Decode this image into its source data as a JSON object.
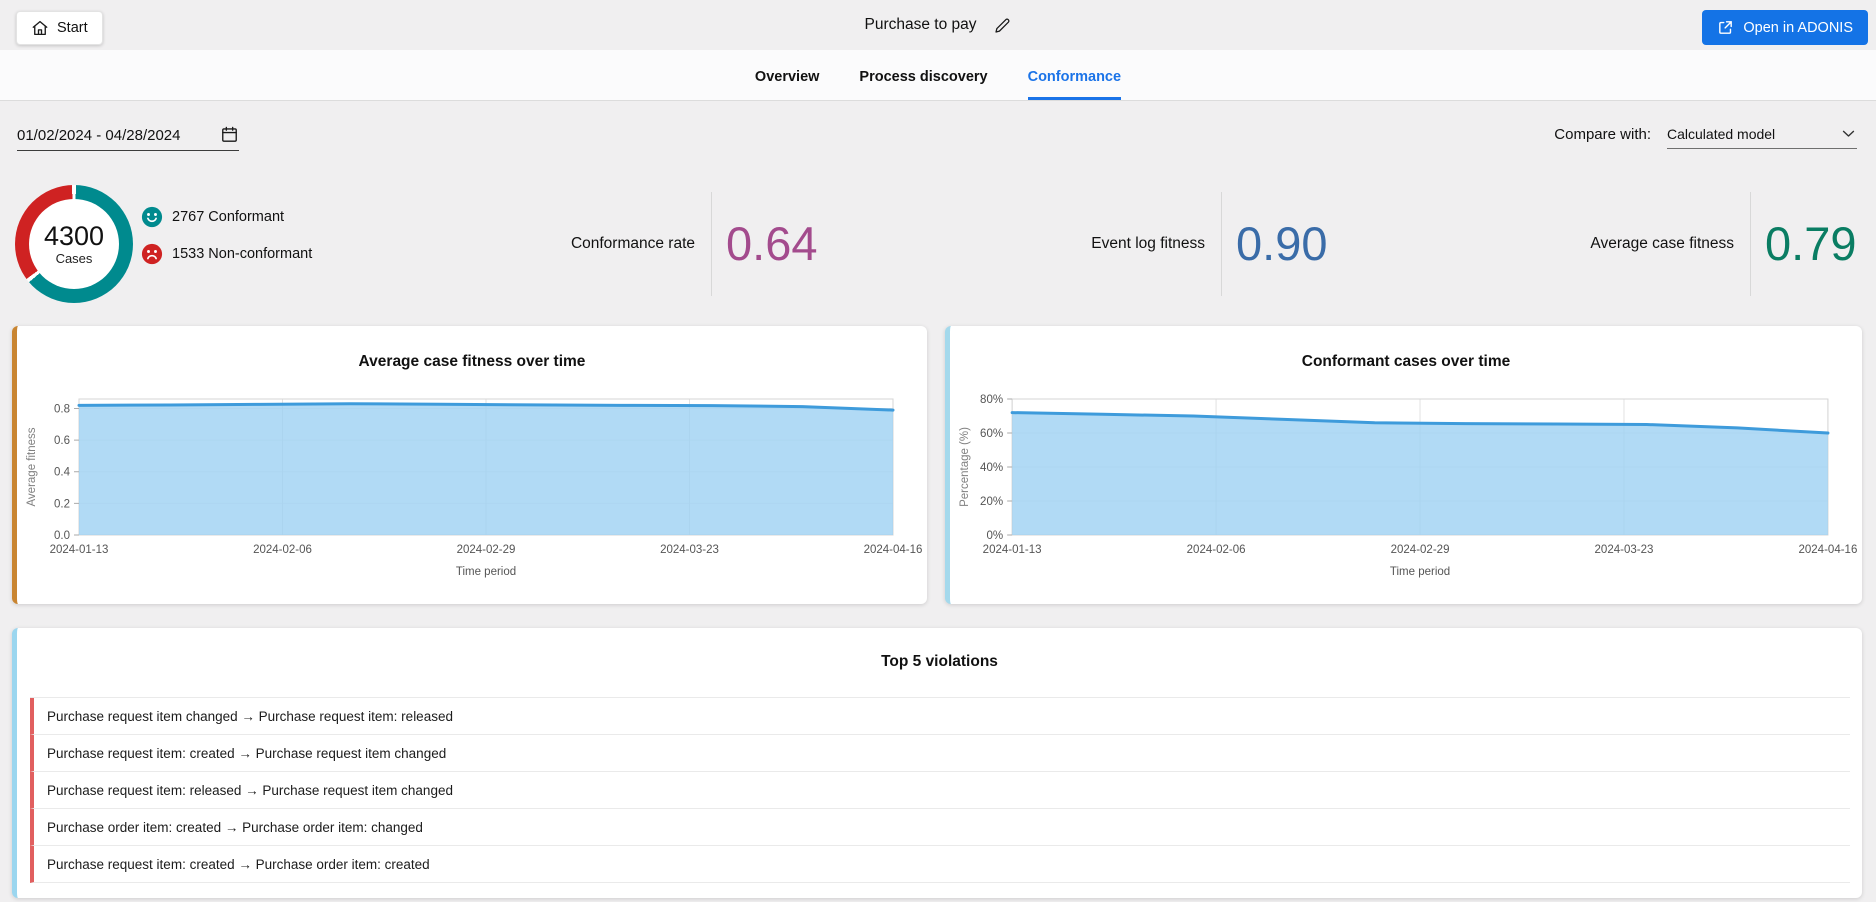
{
  "header": {
    "start_label": "Start",
    "title": "Purchase to pay",
    "open_button_label": "Open in ADONIS",
    "tabs": [
      {
        "label": "Overview",
        "active": false
      },
      {
        "label": "Process discovery",
        "active": false
      },
      {
        "label": "Conformance",
        "active": true
      }
    ],
    "accent_color": "#1473e6",
    "active_tab_color": "#1a73e8"
  },
  "filters": {
    "date_range": "01/02/2024 - 04/28/2024",
    "compare_label": "Compare with:",
    "compare_value": "Calculated model"
  },
  "kpis": {
    "donut": {
      "total": "4300",
      "total_label": "Cases",
      "conformant": 2767,
      "non_conformant": 1533,
      "conformant_label": "2767 Conformant",
      "non_conformant_label": "1533 Non-conformant",
      "conformant_color": "#008a8e",
      "non_conformant_color": "#cf2222"
    },
    "metrics": [
      {
        "label": "Conformance rate",
        "value": "0.64",
        "color": "#a34b8d"
      },
      {
        "label": "Event log fitness",
        "value": "0.90",
        "color": "#3a6ca8"
      },
      {
        "label": "Average case fitness",
        "value": "0.79",
        "color": "#0a7d63"
      }
    ]
  },
  "chart_data": [
    {
      "type": "area",
      "title": "Average case fitness over time",
      "xlabel": "Time period",
      "ylabel": "Average fitness",
      "x_ticks": [
        "2024-01-13",
        "2024-02-06",
        "2024-02-29",
        "2024-03-23",
        "2024-04-16"
      ],
      "y_ticks": [
        0,
        0.2,
        0.4,
        0.6,
        0.8
      ],
      "y_tick_labels": [
        "0.0",
        "0.2",
        "0.4",
        "0.6",
        "0.8"
      ],
      "ylim": [
        0,
        0.86
      ],
      "values": [
        0.82,
        0.822,
        0.826,
        0.83,
        0.827,
        0.823,
        0.82,
        0.818,
        0.812,
        0.79
      ],
      "grid": true,
      "legend": "none",
      "line_color": "#3e9bdb",
      "fill_color": "#9ed1f3",
      "accent": "#c98531"
    },
    {
      "type": "area",
      "title": "Conformant cases over time",
      "xlabel": "Time period",
      "ylabel": "Percentage (%)",
      "x_ticks": [
        "2024-01-13",
        "2024-02-06",
        "2024-02-29",
        "2024-03-23",
        "2024-04-16"
      ],
      "y_ticks": [
        0,
        20,
        40,
        60,
        80
      ],
      "y_tick_labels": [
        "0%",
        "20%",
        "40%",
        "60%",
        "80%"
      ],
      "ylim": [
        0,
        80
      ],
      "values": [
        72,
        71,
        70,
        68,
        66,
        65.5,
        65.3,
        65,
        63,
        60
      ],
      "grid": true,
      "legend": "none",
      "line_color": "#3e9bdb",
      "fill_color": "#9ed1f3",
      "accent": "#a4d9ec"
    }
  ],
  "violations": {
    "title": "Top 5 violations",
    "accent_color": "#9bd6ef",
    "item_accent_color": "#e15f5f",
    "items": [
      "Purchase request item changed → Purchase request item: released",
      "Purchase request item: created → Purchase request item changed",
      "Purchase request item: released → Purchase request item changed",
      "Purchase order item: created → Purchase order item: changed",
      "Purchase request item: created → Purchase order item: created"
    ]
  }
}
